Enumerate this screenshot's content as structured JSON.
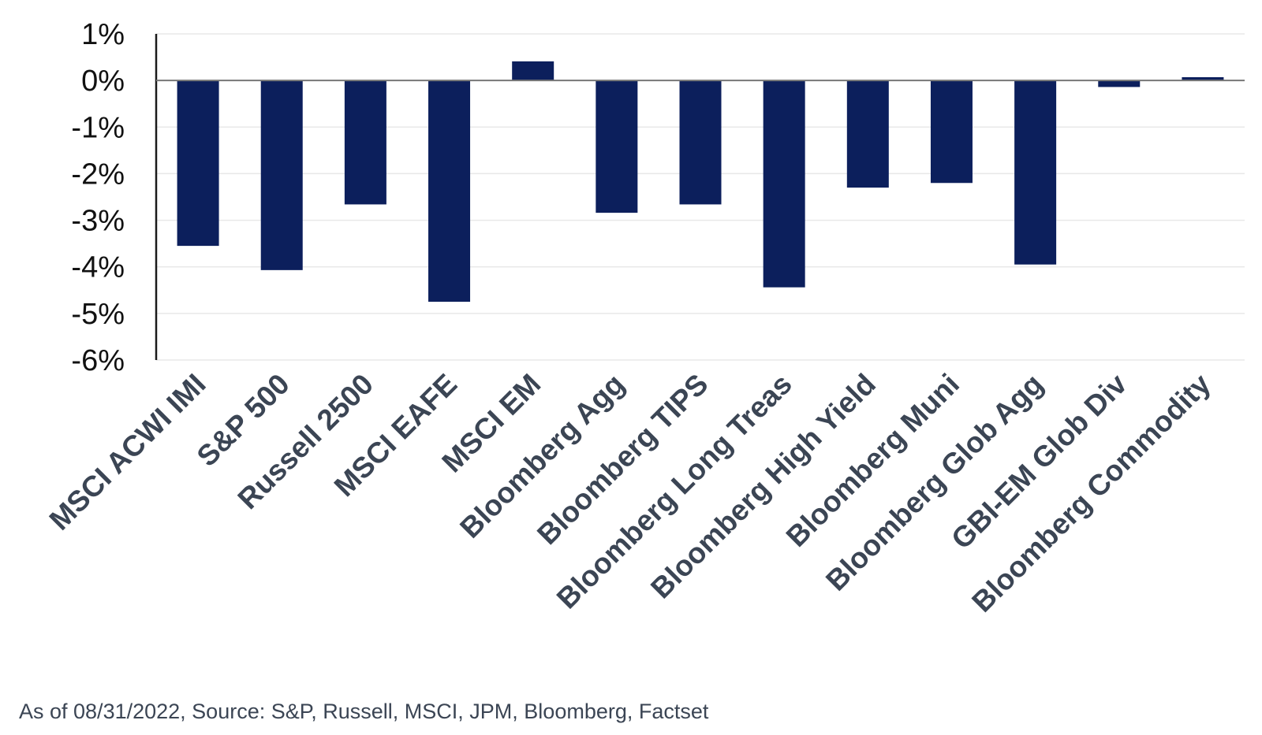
{
  "chart_data": {
    "type": "bar",
    "title": "",
    "xlabel": "",
    "ylabel": "",
    "ylim": [
      -6,
      1
    ],
    "yticks": [
      1,
      0,
      -1,
      -2,
      -3,
      -4,
      -5,
      -6
    ],
    "ytick_labels": [
      "1%",
      "0%",
      "-1%",
      "-2%",
      "-3%",
      "-4%",
      "-5%",
      "-6%"
    ],
    "categories": [
      "MSCI ACWI IMI",
      "S&P 500",
      "Russell 2500",
      "MSCI EAFE",
      "MSCI EM",
      "Bloomberg Agg",
      "Bloomberg TIPS",
      "Bloomberg Long Treas",
      "Bloomberg High Yield",
      "Bloomberg Muni",
      "Bloomberg Glob Agg",
      "GBI-EM Glob Div",
      "Bloomberg Commodity"
    ],
    "values": [
      -3.55,
      -4.07,
      -2.66,
      -4.75,
      0.41,
      -2.84,
      -2.66,
      -4.44,
      -2.3,
      -2.2,
      -3.95,
      -0.14,
      0.07
    ],
    "grid": true,
    "bar_color": "#0c1f5c",
    "label_color": "#3b4554",
    "axis_color": "#1a1a1a",
    "grid_color": "#e8e8e8"
  },
  "footer": {
    "source": "As of 08/31/2022, Source: S&P, Russell, MSCI, JPM, Bloomberg, Factset"
  }
}
